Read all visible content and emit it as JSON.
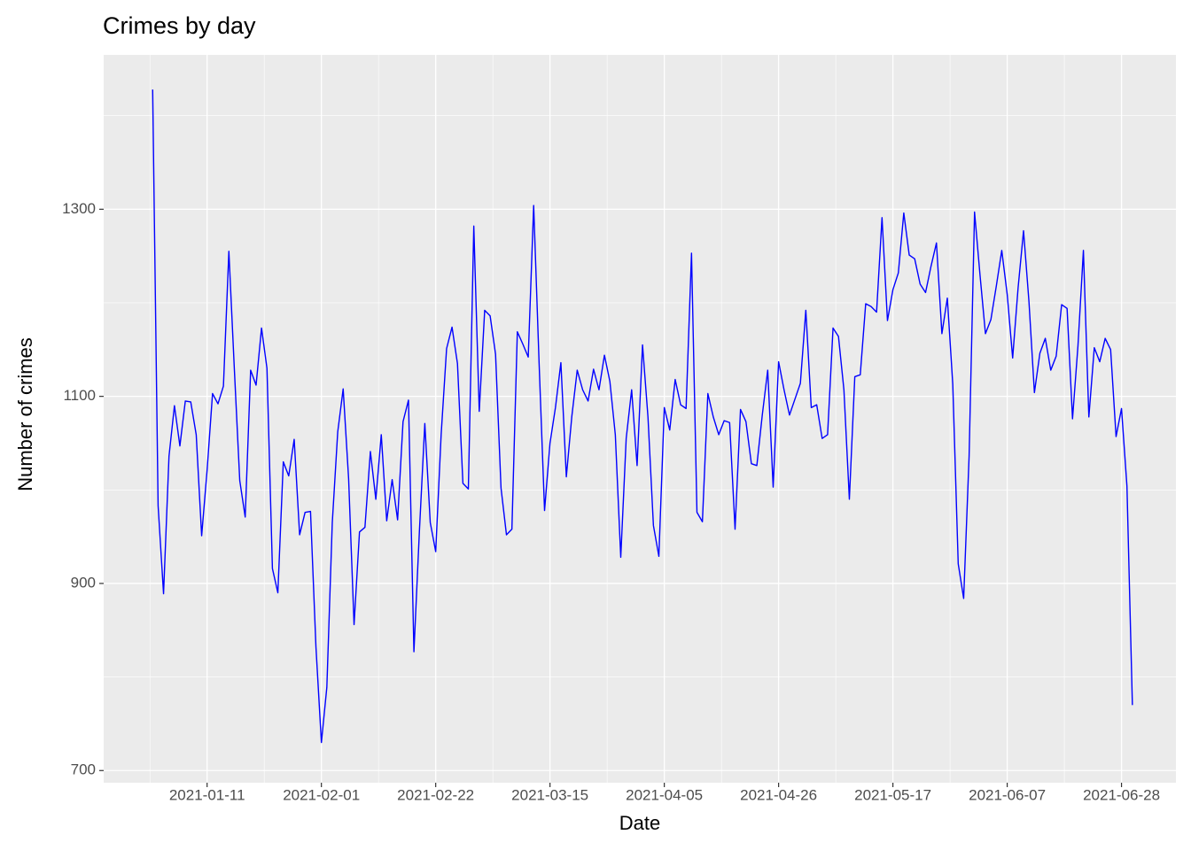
{
  "chart_data": {
    "type": "line",
    "title": "Crimes by day",
    "x_label": "Date",
    "y_label": "Number of crimes",
    "color": "#0000ff",
    "grid": true,
    "x": [
      "2021-01-01",
      "2021-01-02",
      "2021-01-03",
      "2021-01-04",
      "2021-01-05",
      "2021-01-06",
      "2021-01-07",
      "2021-01-08",
      "2021-01-09",
      "2021-01-10",
      "2021-01-11",
      "2021-01-12",
      "2021-01-13",
      "2021-01-14",
      "2021-01-15",
      "2021-01-16",
      "2021-01-17",
      "2021-01-18",
      "2021-01-19",
      "2021-01-20",
      "2021-01-21",
      "2021-01-22",
      "2021-01-23",
      "2021-01-24",
      "2021-01-25",
      "2021-01-26",
      "2021-01-27",
      "2021-01-28",
      "2021-01-29",
      "2021-01-30",
      "2021-01-31",
      "2021-02-01",
      "2021-02-02",
      "2021-02-03",
      "2021-02-04",
      "2021-02-05",
      "2021-02-06",
      "2021-02-07",
      "2021-02-08",
      "2021-02-09",
      "2021-02-10",
      "2021-02-11",
      "2021-02-12",
      "2021-02-13",
      "2021-02-14",
      "2021-02-15",
      "2021-02-16",
      "2021-02-17",
      "2021-02-18",
      "2021-02-19",
      "2021-02-20",
      "2021-02-21",
      "2021-02-22",
      "2021-02-23",
      "2021-02-24",
      "2021-02-25",
      "2021-02-26",
      "2021-02-27",
      "2021-02-28",
      "2021-03-01",
      "2021-03-02",
      "2021-03-03",
      "2021-03-04",
      "2021-03-05",
      "2021-03-06",
      "2021-03-07",
      "2021-03-08",
      "2021-03-09",
      "2021-03-10",
      "2021-03-11",
      "2021-03-12",
      "2021-03-13",
      "2021-03-14",
      "2021-03-15",
      "2021-03-16",
      "2021-03-17",
      "2021-03-18",
      "2021-03-19",
      "2021-03-20",
      "2021-03-21",
      "2021-03-22",
      "2021-03-23",
      "2021-03-24",
      "2021-03-25",
      "2021-03-26",
      "2021-03-27",
      "2021-03-28",
      "2021-03-29",
      "2021-03-30",
      "2021-03-31",
      "2021-04-01",
      "2021-04-02",
      "2021-04-03",
      "2021-04-04",
      "2021-04-05",
      "2021-04-06",
      "2021-04-07",
      "2021-04-08",
      "2021-04-09",
      "2021-04-10",
      "2021-04-11",
      "2021-04-12",
      "2021-04-13",
      "2021-04-14",
      "2021-04-15",
      "2021-04-16",
      "2021-04-17",
      "2021-04-18",
      "2021-04-19",
      "2021-04-20",
      "2021-04-21",
      "2021-04-22",
      "2021-04-23",
      "2021-04-24",
      "2021-04-25",
      "2021-04-26",
      "2021-04-27",
      "2021-04-28",
      "2021-04-29",
      "2021-04-30",
      "2021-05-01",
      "2021-05-02",
      "2021-05-03",
      "2021-05-04",
      "2021-05-05",
      "2021-05-06",
      "2021-05-07",
      "2021-05-08",
      "2021-05-09",
      "2021-05-10",
      "2021-05-11",
      "2021-05-12",
      "2021-05-13",
      "2021-05-14",
      "2021-05-15",
      "2021-05-16",
      "2021-05-17",
      "2021-05-18",
      "2021-05-19",
      "2021-05-20",
      "2021-05-21",
      "2021-05-22",
      "2021-05-23",
      "2021-05-24",
      "2021-05-25",
      "2021-05-26",
      "2021-05-27",
      "2021-05-28",
      "2021-05-29",
      "2021-05-30",
      "2021-05-31",
      "2021-06-01",
      "2021-06-02",
      "2021-06-03",
      "2021-06-04",
      "2021-06-05",
      "2021-06-06",
      "2021-06-07",
      "2021-06-08",
      "2021-06-09",
      "2021-06-10",
      "2021-06-11",
      "2021-06-12",
      "2021-06-13",
      "2021-06-14",
      "2021-06-15",
      "2021-06-16",
      "2021-06-17",
      "2021-06-18",
      "2021-06-19",
      "2021-06-20",
      "2021-06-21",
      "2021-06-22",
      "2021-06-23",
      "2021-06-24",
      "2021-06-25",
      "2021-06-26",
      "2021-06-27",
      "2021-06-28",
      "2021-06-29",
      "2021-06-30"
    ],
    "values": [
      1428,
      983,
      889,
      1036,
      1090,
      1047,
      1095,
      1094,
      1059,
      951,
      1021,
      1103,
      1092,
      1111,
      1255,
      1130,
      1010,
      971,
      1128,
      1112,
      1173,
      1130,
      916,
      890,
      1030,
      1015,
      1054,
      952,
      976,
      977,
      832,
      730,
      789,
      965,
      1062,
      1108,
      1012,
      856,
      955,
      960,
      1041,
      990,
      1059,
      967,
      1011,
      968,
      1073,
      1096,
      827,
      955,
      1071,
      965,
      934,
      1059,
      1151,
      1174,
      1135,
      1007,
      1001,
      1282,
      1084,
      1192,
      1186,
      1145,
      1002,
      952,
      958,
      1169,
      1156,
      1142,
      1304,
      1135,
      978,
      1050,
      1088,
      1136,
      1014,
      1078,
      1128,
      1107,
      1095,
      1129,
      1107,
      1144,
      1116,
      1059,
      928,
      1055,
      1107,
      1026,
      1155,
      1078,
      962,
      929,
      1088,
      1064,
      1118,
      1091,
      1087,
      1253,
      976,
      966,
      1103,
      1078,
      1059,
      1074,
      1072,
      958,
      1086,
      1073,
      1028,
      1026,
      1080,
      1128,
      1003,
      1137,
      1107,
      1080,
      1097,
      1114,
      1192,
      1088,
      1091,
      1055,
      1059,
      1173,
      1164,
      1107,
      990,
      1121,
      1123,
      1199,
      1196,
      1190,
      1291,
      1181,
      1214,
      1232,
      1296,
      1251,
      1247,
      1220,
      1211,
      1239,
      1264,
      1167,
      1205,
      1113,
      921,
      884,
      1036,
      1297,
      1230,
      1167,
      1182,
      1218,
      1256,
      1209,
      1141,
      1216,
      1277,
      1201,
      1104,
      1146,
      1162,
      1128,
      1143,
      1198,
      1194,
      1076,
      1154,
      1256,
      1078,
      1152,
      1137,
      1162,
      1150,
      1057,
      1087,
      1004,
      770
    ],
    "xlim": [
      "2020-12-23",
      "2021-07-08"
    ],
    "xticks": [
      "2021-01-11",
      "2021-02-01",
      "2021-02-22",
      "2021-03-15",
      "2021-04-05",
      "2021-04-26",
      "2021-05-17",
      "2021-06-07",
      "2021-06-28"
    ],
    "ylim": [
      687,
      1465
    ],
    "yticks": [
      700,
      900,
      1100,
      1300
    ]
  }
}
